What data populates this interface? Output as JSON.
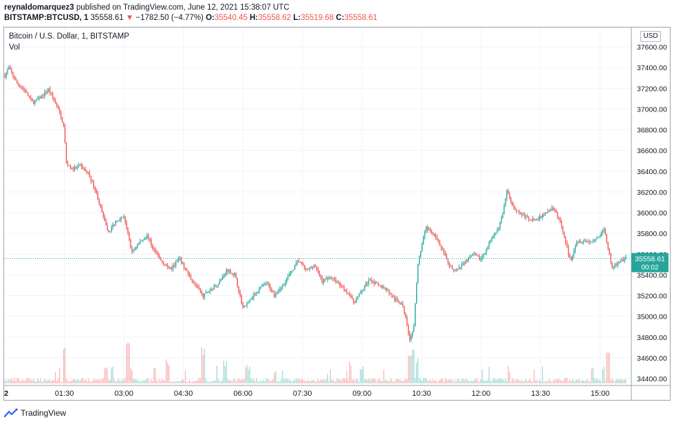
{
  "header": {
    "author": "reynaldomarquez3",
    "published_text": "published on TradingView.com, June 12, 2021 15:38:07 UTC"
  },
  "quote": {
    "symbol": "BITSTAMP:BTCUSD, 1",
    "last": "35558.61",
    "change_arrow": "▼",
    "change": "−1782.50 (−4.77%)",
    "o_label": "O:",
    "o_value": "35540.45",
    "h_label": "H:",
    "h_value": "35558.62",
    "l_label": "L:",
    "l_value": "35519.68",
    "c_label": "C:",
    "c_value": "35558.61"
  },
  "series_title": "Bitcoin / U.S. Dollar, 1, BITSTAMP",
  "volume_label": "Vol",
  "currency": "USD",
  "footer": {
    "brand": "TradingView"
  },
  "colors": {
    "up": "#26a69a",
    "down": "#ef5350",
    "grid": "#f0f3fa",
    "price_line": "#26a69a",
    "price_label_bg": "#26a69a"
  },
  "chart_data": {
    "type": "candlestick",
    "title": "Bitcoin / U.S. Dollar, 1, BITSTAMP",
    "xlabel": "",
    "ylabel": "USD",
    "ylim": [
      34300,
      37700
    ],
    "y_ticks": [
      "37600.00",
      "37400.00",
      "37200.00",
      "37000.00",
      "36800.00",
      "36600.00",
      "36400.00",
      "36200.00",
      "36000.00",
      "35800.00",
      "35600.00",
      "35400.00",
      "35200.00",
      "35000.00",
      "34800.00",
      "34600.00",
      "34400.00"
    ],
    "x_ticks": [
      "2",
      "01:30",
      "03:00",
      "04:30",
      "06:00",
      "07:30",
      "09:00",
      "10:30",
      "12:00",
      "13:30",
      "15:00"
    ],
    "x_range_hours": [
      0,
      15.65
    ],
    "last_price": {
      "value": 35558.61,
      "label": "35558.61",
      "countdown": "00:02"
    },
    "price_path": [
      [
        0.0,
        37320
      ],
      [
        0.1,
        37400
      ],
      [
        0.3,
        37250
      ],
      [
        0.5,
        37180
      ],
      [
        0.7,
        37060
      ],
      [
        0.9,
        37110
      ],
      [
        1.1,
        37190
      ],
      [
        1.3,
        37040
      ],
      [
        1.45,
        36880
      ],
      [
        1.5,
        36780
      ],
      [
        1.55,
        36480
      ],
      [
        1.7,
        36420
      ],
      [
        1.9,
        36450
      ],
      [
        2.1,
        36380
      ],
      [
        2.3,
        36200
      ],
      [
        2.5,
        35930
      ],
      [
        2.6,
        35800
      ],
      [
        2.8,
        35920
      ],
      [
        3.0,
        35970
      ],
      [
        3.1,
        35800
      ],
      [
        3.2,
        35620
      ],
      [
        3.4,
        35720
      ],
      [
        3.6,
        35780
      ],
      [
        3.7,
        35680
      ],
      [
        3.9,
        35550
      ],
      [
        4.1,
        35480
      ],
      [
        4.2,
        35460
      ],
      [
        4.4,
        35560
      ],
      [
        4.6,
        35420
      ],
      [
        4.8,
        35300
      ],
      [
        5.0,
        35200
      ],
      [
        5.2,
        35260
      ],
      [
        5.4,
        35330
      ],
      [
        5.6,
        35450
      ],
      [
        5.8,
        35400
      ],
      [
        6.0,
        35080
      ],
      [
        6.2,
        35170
      ],
      [
        6.4,
        35260
      ],
      [
        6.6,
        35320
      ],
      [
        6.8,
        35200
      ],
      [
        7.0,
        35300
      ],
      [
        7.2,
        35420
      ],
      [
        7.4,
        35540
      ],
      [
        7.6,
        35440
      ],
      [
        7.8,
        35500
      ],
      [
        8.0,
        35340
      ],
      [
        8.2,
        35380
      ],
      [
        8.4,
        35320
      ],
      [
        8.6,
        35250
      ],
      [
        8.8,
        35130
      ],
      [
        9.0,
        35250
      ],
      [
        9.2,
        35360
      ],
      [
        9.4,
        35300
      ],
      [
        9.6,
        35270
      ],
      [
        9.8,
        35170
      ],
      [
        10.0,
        35120
      ],
      [
        10.1,
        35000
      ],
      [
        10.2,
        34780
      ],
      [
        10.3,
        34870
      ],
      [
        10.4,
        35480
      ],
      [
        10.5,
        35680
      ],
      [
        10.6,
        35860
      ],
      [
        10.8,
        35790
      ],
      [
        11.0,
        35660
      ],
      [
        11.2,
        35480
      ],
      [
        11.4,
        35440
      ],
      [
        11.6,
        35530
      ],
      [
        11.8,
        35600
      ],
      [
        12.0,
        35550
      ],
      [
        12.2,
        35700
      ],
      [
        12.4,
        35820
      ],
      [
        12.55,
        35980
      ],
      [
        12.65,
        36230
      ],
      [
        12.8,
        36060
      ],
      [
        13.0,
        35990
      ],
      [
        13.2,
        35940
      ],
      [
        13.4,
        35930
      ],
      [
        13.6,
        35990
      ],
      [
        13.8,
        36040
      ],
      [
        13.95,
        35960
      ],
      [
        14.1,
        35770
      ],
      [
        14.25,
        35530
      ],
      [
        14.4,
        35720
      ],
      [
        14.6,
        35730
      ],
      [
        14.8,
        35720
      ],
      [
        15.0,
        35780
      ],
      [
        15.1,
        35850
      ],
      [
        15.2,
        35660
      ],
      [
        15.3,
        35470
      ],
      [
        15.45,
        35510
      ],
      [
        15.65,
        35558.61
      ]
    ],
    "volume_bursts": [
      [
        1.5,
        0.55
      ],
      [
        2.55,
        0.3
      ],
      [
        2.7,
        0.28
      ],
      [
        3.1,
        0.62
      ],
      [
        3.2,
        0.25
      ],
      [
        4.1,
        0.36
      ],
      [
        5.0,
        0.58
      ],
      [
        5.55,
        0.34
      ],
      [
        6.1,
        0.28
      ],
      [
        8.7,
        0.32
      ],
      [
        9.0,
        0.25
      ],
      [
        10.2,
        0.44
      ],
      [
        10.3,
        0.5
      ],
      [
        10.4,
        0.38
      ],
      [
        12.7,
        0.2
      ],
      [
        14.8,
        0.28
      ],
      [
        15.2,
        0.48
      ]
    ]
  }
}
